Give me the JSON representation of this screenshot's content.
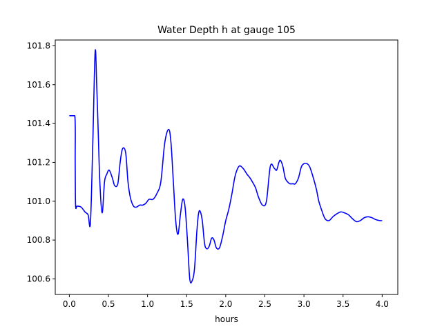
{
  "chart_data": {
    "type": "line",
    "title": "Water Depth h at gauge 105",
    "xlabel": "hours",
    "ylabel": "",
    "xlim": [
      -0.18,
      4.2
    ],
    "ylim": [
      100.52,
      101.83
    ],
    "xticks": [
      0.0,
      0.5,
      1.0,
      1.5,
      2.0,
      2.5,
      3.0,
      3.5,
      4.0
    ],
    "xtick_labels": [
      "0.0",
      "0.5",
      "1.0",
      "1.5",
      "2.0",
      "2.5",
      "3.0",
      "3.5",
      "4.0"
    ],
    "yticks": [
      100.6,
      100.8,
      101.0,
      101.2,
      101.4,
      101.6,
      101.8
    ],
    "ytick_labels": [
      "100.6",
      "100.8",
      "101.0",
      "101.2",
      "101.4",
      "101.6",
      "101.8"
    ],
    "grid": false,
    "series": [
      {
        "color": "#0000ff",
        "x": [
          0.0,
          0.07,
          0.075,
          0.08,
          0.1,
          0.15,
          0.2,
          0.24,
          0.27,
          0.3,
          0.33,
          0.35,
          0.37,
          0.39,
          0.42,
          0.45,
          0.48,
          0.51,
          0.55,
          0.58,
          0.62,
          0.65,
          0.68,
          0.72,
          0.75,
          0.78,
          0.82,
          0.86,
          0.9,
          0.94,
          0.98,
          1.02,
          1.07,
          1.12,
          1.17,
          1.22,
          1.27,
          1.3,
          1.33,
          1.36,
          1.39,
          1.42,
          1.45,
          1.48,
          1.51,
          1.54,
          1.57,
          1.6,
          1.63,
          1.65,
          1.67,
          1.7,
          1.73,
          1.76,
          1.79,
          1.82,
          1.85,
          1.88,
          1.92,
          1.96,
          2.0,
          2.04,
          2.08,
          2.12,
          2.17,
          2.22,
          2.27,
          2.31,
          2.34,
          2.38,
          2.42,
          2.47,
          2.52,
          2.57,
          2.62,
          2.65,
          2.68,
          2.7,
          2.73,
          2.76,
          2.79,
          2.82,
          2.86,
          2.89,
          2.93,
          2.97,
          3.02,
          3.07,
          3.12,
          3.16,
          3.19,
          3.23,
          3.27,
          3.32,
          3.37,
          3.42,
          3.47,
          3.52,
          3.57,
          3.62,
          3.67,
          3.72,
          3.77,
          3.82,
          3.87,
          3.92,
          3.97,
          4.0
        ],
        "y": [
          101.44,
          101.44,
          101.2,
          100.98,
          100.975,
          100.97,
          100.945,
          100.93,
          100.89,
          101.3,
          101.77,
          101.6,
          101.35,
          101.1,
          100.94,
          101.1,
          101.14,
          101.16,
          101.12,
          101.08,
          101.09,
          101.2,
          101.27,
          101.25,
          101.1,
          101.02,
          100.975,
          100.97,
          100.98,
          100.98,
          100.99,
          101.01,
          101.01,
          101.04,
          101.1,
          101.3,
          101.37,
          101.3,
          101.1,
          100.9,
          100.83,
          100.93,
          101.01,
          100.97,
          100.8,
          100.6,
          100.59,
          100.65,
          100.84,
          100.93,
          100.95,
          100.9,
          100.78,
          100.755,
          100.77,
          100.81,
          100.8,
          100.76,
          100.76,
          100.82,
          100.9,
          100.96,
          101.04,
          101.13,
          101.18,
          101.17,
          101.14,
          101.12,
          101.1,
          101.07,
          101.02,
          100.98,
          101.0,
          101.18,
          101.17,
          101.16,
          101.2,
          101.21,
          101.18,
          101.12,
          101.1,
          101.09,
          101.09,
          101.09,
          101.12,
          101.18,
          101.195,
          101.18,
          101.12,
          101.06,
          101.0,
          100.95,
          100.91,
          100.9,
          100.92,
          100.935,
          100.945,
          100.94,
          100.93,
          100.91,
          100.895,
          100.9,
          100.915,
          100.92,
          100.915,
          100.905,
          100.9,
          100.9
        ]
      }
    ]
  }
}
